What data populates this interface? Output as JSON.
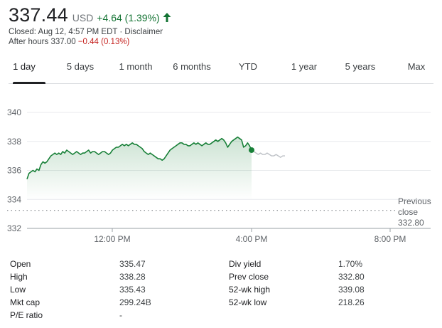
{
  "quote": {
    "price": "337.44",
    "currency": "USD",
    "change": "+4.64 (1.39%)",
    "closed_line": "Closed: Aug 12, 4:57 PM EDT · Disclaimer",
    "after_hours_label": "After hours 337.00",
    "after_hours_change": "−0.44 (0.13%)",
    "up_color": "#137333",
    "down_color": "#c5221f"
  },
  "tabs": [
    {
      "label": "1 day",
      "active": true
    },
    {
      "label": "5 days"
    },
    {
      "label": "1 month"
    },
    {
      "label": "6 months"
    },
    {
      "label": "YTD"
    },
    {
      "label": "1 year"
    },
    {
      "label": "5 years"
    },
    {
      "label": "Max"
    }
  ],
  "chart_data": {
    "type": "line",
    "y_ticks": [
      332,
      334,
      336,
      338,
      340
    ],
    "ylim": [
      332,
      340
    ],
    "x_ticks": [
      "12:00 PM",
      "4:00 PM",
      "8:00 PM"
    ],
    "grid": true,
    "reference_line": {
      "label_line1": "Previous",
      "label_line2": "close",
      "value_label": "332.80",
      "value": 332.8
    },
    "series": [
      {
        "values": [
          335.4,
          335.8,
          335.9,
          336.0,
          335.9,
          336.1,
          336.0,
          336.4,
          336.6,
          336.5,
          336.6,
          336.8,
          337.0,
          337.1,
          337.2,
          337.1,
          337.2,
          337.1,
          337.3,
          337.2,
          337.4,
          337.3,
          337.2,
          337.1,
          337.2,
          337.3,
          337.2,
          337.1,
          337.2,
          337.2,
          337.3,
          337.4,
          337.2,
          337.3,
          337.3,
          337.2,
          337.1,
          337.2,
          337.3,
          337.3,
          337.2,
          337.1,
          337.2,
          337.4,
          337.5,
          337.6,
          337.6,
          337.7,
          337.8,
          337.7,
          337.8,
          337.7,
          337.8,
          337.9,
          337.8,
          337.8,
          337.7,
          337.6,
          337.5,
          337.3,
          337.2,
          337.1,
          337.2,
          337.1,
          337.0,
          336.9,
          336.8,
          336.8,
          336.7,
          336.8,
          337.0,
          337.2,
          337.4,
          337.5,
          337.6,
          337.7,
          337.8,
          337.9,
          337.9,
          337.8,
          337.8,
          337.7,
          337.7,
          337.8,
          337.9,
          337.8,
          337.9,
          337.8,
          337.7,
          337.8,
          337.9,
          337.8,
          337.8,
          337.9,
          338.0,
          338.1,
          338.0,
          338.1,
          338.2,
          338.1,
          337.9,
          337.6,
          337.8,
          338.0,
          338.1,
          338.2,
          338.3,
          338.2,
          338.1,
          337.6,
          337.7,
          337.9,
          337.7,
          337.4
        ],
        "color": "#188038",
        "after_hours": [
          337.4,
          337.3,
          337.2,
          337.1,
          337.2,
          337.1,
          337.1,
          337.2,
          337.1,
          337.0,
          337.0,
          337.1,
          337.0,
          336.9,
          337.0,
          337.0
        ],
        "after_hours_color": "#bdc1c6"
      }
    ]
  },
  "stats": {
    "left": [
      {
        "label": "Open",
        "value": "335.47"
      },
      {
        "label": "High",
        "value": "338.28"
      },
      {
        "label": "Low",
        "value": "335.43"
      },
      {
        "label": "Mkt cap",
        "value": "299.24B"
      },
      {
        "label": "P/E ratio",
        "value": "-"
      }
    ],
    "right": [
      {
        "label": "Div yield",
        "value": "1.70%"
      },
      {
        "label": "Prev close",
        "value": "332.80"
      },
      {
        "label": "52-wk high",
        "value": "339.08"
      },
      {
        "label": "52-wk low",
        "value": "218.26"
      }
    ]
  }
}
